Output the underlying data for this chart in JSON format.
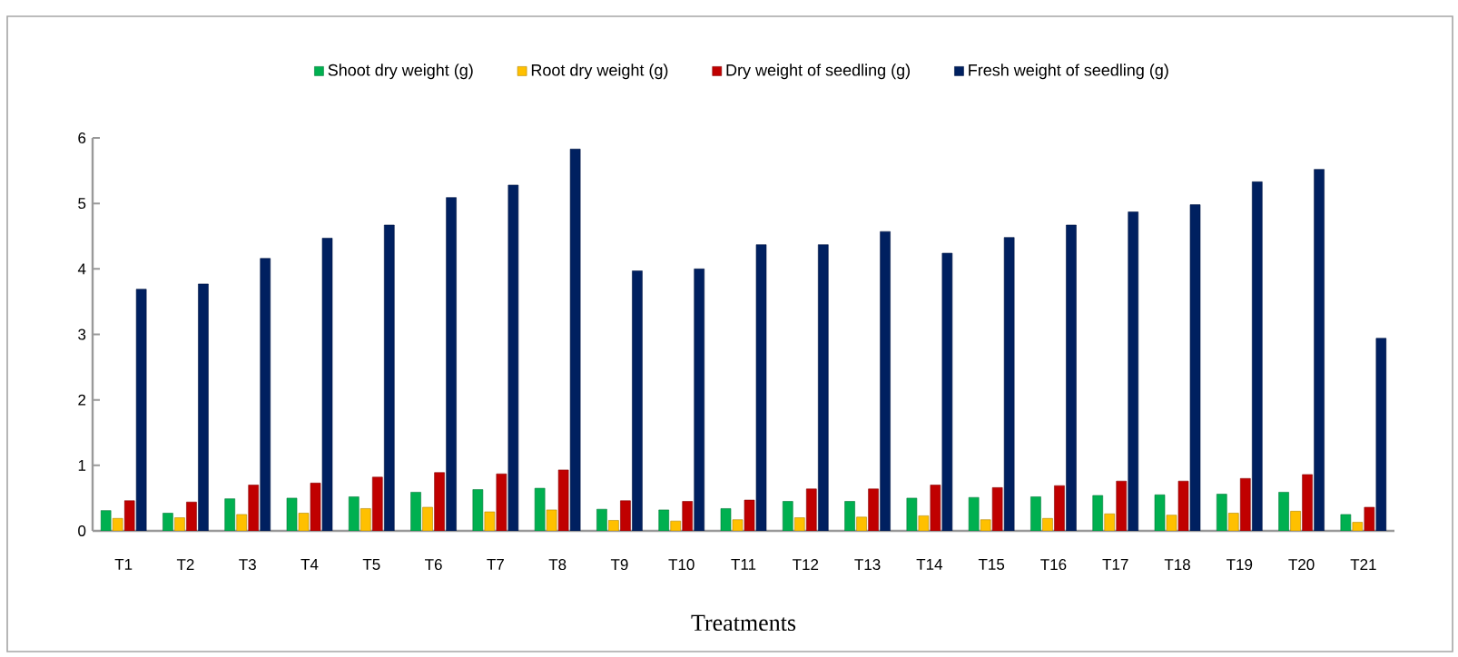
{
  "chart_data": {
    "type": "bar",
    "xlabel": "Treatments",
    "categories": [
      "T1",
      "T2",
      "T3",
      "T4",
      "T5",
      "T6",
      "T7",
      "T8",
      "T9",
      "T10",
      "T11",
      "T12",
      "T13",
      "T14",
      "T15",
      "T16",
      "T17",
      "T18",
      "T19",
      "T20",
      "T21"
    ],
    "series": [
      {
        "name": "Shoot dry weight (g)",
        "color": "#00b050",
        "values": [
          0.31,
          0.27,
          0.49,
          0.5,
          0.52,
          0.59,
          0.63,
          0.65,
          0.33,
          0.32,
          0.34,
          0.45,
          0.45,
          0.5,
          0.51,
          0.52,
          0.54,
          0.55,
          0.56,
          0.59,
          0.25
        ]
      },
      {
        "name": "Root dry weight (g)",
        "color": "#ffc000",
        "values": [
          0.19,
          0.2,
          0.25,
          0.27,
          0.34,
          0.36,
          0.29,
          0.32,
          0.16,
          0.15,
          0.17,
          0.2,
          0.21,
          0.23,
          0.17,
          0.19,
          0.26,
          0.24,
          0.27,
          0.3,
          0.13
        ]
      },
      {
        "name": "Dry weight of seedling (g)",
        "color": "#c00000",
        "values": [
          0.46,
          0.44,
          0.7,
          0.73,
          0.82,
          0.89,
          0.87,
          0.93,
          0.46,
          0.45,
          0.47,
          0.64,
          0.64,
          0.7,
          0.66,
          0.69,
          0.76,
          0.76,
          0.8,
          0.86,
          0.36
        ]
      },
      {
        "name": "Fresh weight of seedling (g)",
        "color": "#002060",
        "values": [
          3.69,
          3.77,
          4.16,
          4.47,
          4.67,
          5.09,
          5.28,
          5.83,
          3.97,
          4.0,
          4.37,
          4.37,
          4.57,
          4.24,
          4.48,
          4.67,
          4.87,
          4.98,
          5.33,
          5.52,
          2.94
        ]
      }
    ],
    "ylim": [
      0,
      6
    ],
    "yticks": [
      0,
      1,
      2,
      3,
      4,
      5,
      6
    ],
    "legend": "top",
    "grid": false
  }
}
